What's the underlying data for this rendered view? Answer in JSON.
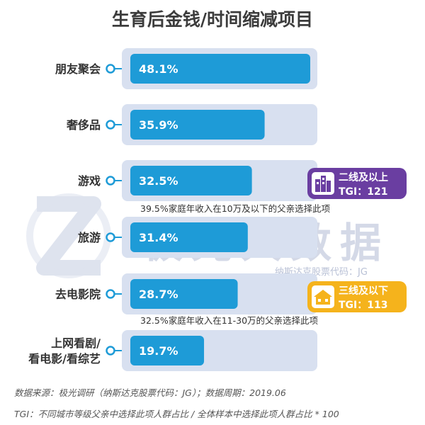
{
  "title": "生育后金钱/时间缩减项目",
  "chart_data": {
    "type": "bar",
    "orientation": "horizontal",
    "title": "生育后金钱/时间缩减项目",
    "categories": [
      "朋友聚会",
      "奢侈品",
      "游戏",
      "旅游",
      "去电影院",
      "上网看剧/\n看电影/看综艺"
    ],
    "values": [
      48.1,
      35.9,
      32.5,
      31.4,
      28.7,
      19.7
    ],
    "value_labels": [
      "48.1%",
      "35.9%",
      "32.5%",
      "31.4%",
      "28.7%",
      "19.7%"
    ],
    "xlim": [
      0,
      55
    ],
    "unit": "%",
    "bar_color": "#1e9bd7",
    "track_color": "#d8e0f0",
    "grid": false,
    "legend": "none",
    "annotations": [
      "39.5%家庭年收入在10万及以下的父亲选择此项",
      "32.5%家庭年收入在11-30万的父亲选择此项"
    ]
  },
  "badges": [
    {
      "line1": "二线及以上",
      "line2": "TGI：121",
      "color": "#6a3ea1",
      "icon": "building-icon"
    },
    {
      "line1": "三线及以下",
      "line2": "TGI：113",
      "color": "#f5b31c",
      "icon": "house-icon"
    }
  ],
  "watermark": {
    "text": "极光大数据",
    "sub": "纳斯达克股票代码：JG"
  },
  "footer": {
    "source": "数据来源：极光调研（纳斯达克股票代码：JG）；数据周期：2019.06",
    "tgi": "TGI：不同城市等级父亲中选择此项人群占比 / 全体样本中选择此项人群占比 * 100"
  }
}
